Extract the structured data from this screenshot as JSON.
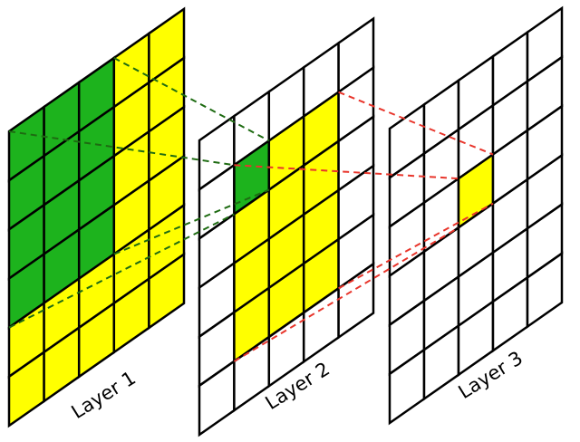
{
  "layers": [
    {
      "label": "Layer 1"
    },
    {
      "label": "Layer 2"
    },
    {
      "label": "Layer 3"
    }
  ]
}
